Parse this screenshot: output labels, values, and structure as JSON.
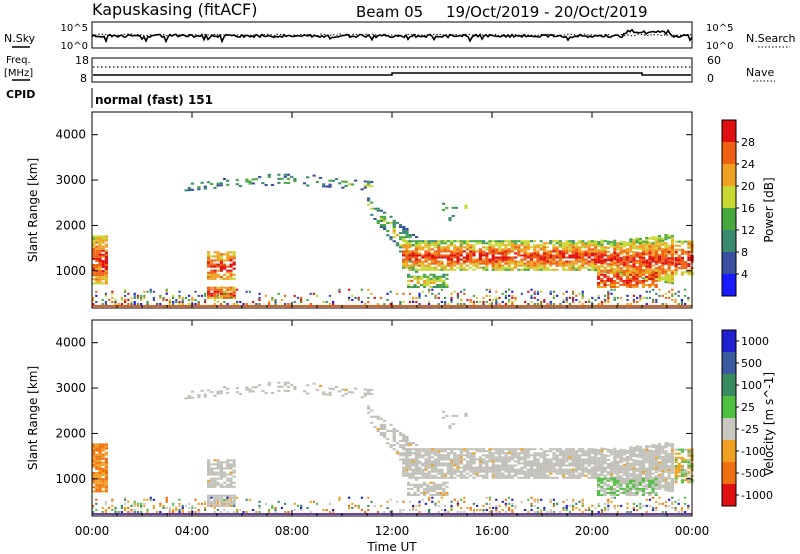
{
  "header": {
    "station": "Kapuskasing (fitACF)",
    "beam": "Beam 05",
    "date_range": "19/Oct/2019 - 20/Oct/2019"
  },
  "nsky_panel": {
    "left_label": "N.Sky",
    "right_label": "N.Search",
    "ticks_left": [
      "10^5",
      "10^0"
    ],
    "ticks_right": [
      "10^5",
      "10^0"
    ]
  },
  "freq_panel": {
    "left_label_1": "Freq.",
    "left_label_2": "[MHz]",
    "left_ticks": [
      "18",
      "8"
    ],
    "right_label": "Nave",
    "right_ticks": [
      "60",
      "0"
    ]
  },
  "cpid_panel": {
    "label": "CPID",
    "mode_text": "normal (fast) 151"
  },
  "colors": {
    "power_scale": [
      "#1a1aff",
      "#3a4fa0",
      "#3a8a70",
      "#48a840",
      "#c8d830",
      "#f0a020",
      "#f06010",
      "#e01010"
    ],
    "velocity_scale": [
      "#2020d0",
      "#3a5aa0",
      "#3a8a60",
      "#50c040",
      "#c8c8c0",
      "#f0a020",
      "#f07010",
      "#e01010"
    ],
    "ground_scatter": "#c0c0b8"
  },
  "chart_data": [
    {
      "type": "heatmap",
      "name": "power",
      "ylabel": "Slant Range [km]",
      "yticks": [
        "1000",
        "2000",
        "3000",
        "4000"
      ],
      "ylim": [
        180,
        4500
      ],
      "colorbar_label": "Power [dB]",
      "colorbar_ticks": [
        "4",
        "8",
        "12",
        "16",
        "20",
        "24",
        "28"
      ],
      "colorbar_range": [
        0,
        32
      ]
    },
    {
      "type": "heatmap",
      "name": "velocity",
      "ylabel": "Slant Range [km]",
      "yticks": [
        "1000",
        "2000",
        "3000",
        "4000"
      ],
      "ylim": [
        180,
        4500
      ],
      "colorbar_label": "Velocity [m s^-1]",
      "colorbar_ticks": [
        "1000",
        "500",
        "100",
        "25",
        "-25",
        "-100",
        "-500",
        "-1000"
      ]
    }
  ],
  "xaxis": {
    "label": "Time UT",
    "ticks": [
      "00:00",
      "04:00",
      "08:00",
      "12:00",
      "16:00",
      "20:00",
      "00:00"
    ],
    "range_hours": [
      0,
      24
    ]
  }
}
